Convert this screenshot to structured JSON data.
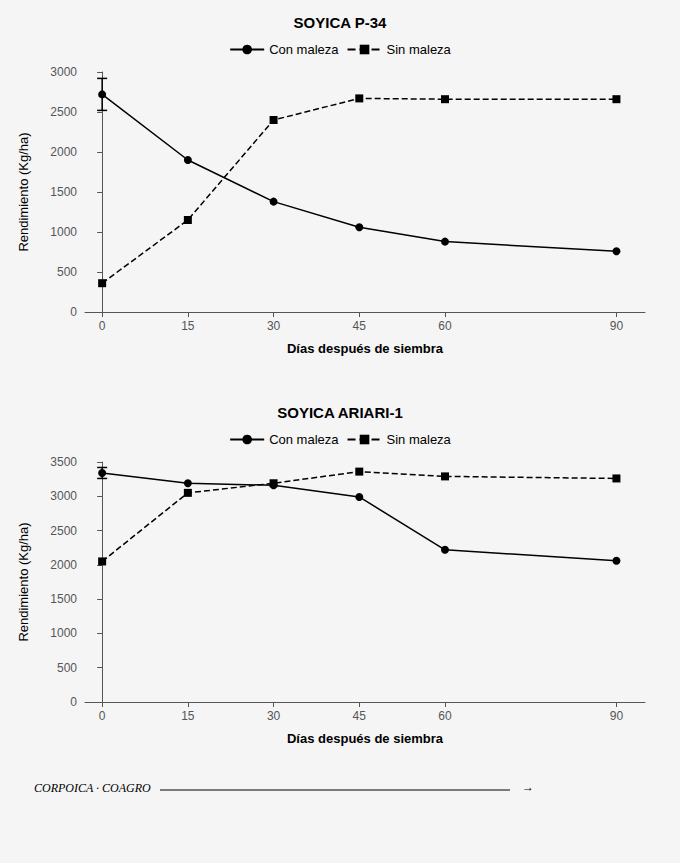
{
  "chart_data": [
    {
      "type": "line",
      "title": "SOYICA P-34",
      "x_label": "Días después de siembra",
      "y_label": "Rendimiento (Kg/ha)",
      "x": [
        0,
        15,
        30,
        45,
        60,
        90
      ],
      "series": [
        {
          "name": "Con maleza",
          "color": "#000000",
          "marker": "circle",
          "line_style": "solid",
          "values": [
            2720,
            1900,
            1380,
            1060,
            880,
            760
          ],
          "error": [
            200,
            null,
            null,
            null,
            null,
            null
          ]
        },
        {
          "name": "Sin maleza",
          "color": "#000000",
          "marker": "square",
          "line_style": "dashed",
          "values": [
            360,
            1150,
            2400,
            2670,
            2660,
            2660
          ]
        }
      ],
      "xlim": [
        -3,
        95
      ],
      "xticks": [
        0,
        15,
        30,
        45,
        60,
        90
      ],
      "ylim": [
        0,
        3000
      ],
      "yticks": [
        0,
        500,
        1000,
        1500,
        2000,
        2500,
        3000
      ],
      "grid": false,
      "legend": "top"
    },
    {
      "type": "line",
      "title": "SOYICA ARIARI-1",
      "x_label": "Días después de siembra",
      "y_label": "Rendimiento (Kg/ha)",
      "x": [
        0,
        15,
        30,
        45,
        60,
        90
      ],
      "series": [
        {
          "name": "Con maleza",
          "color": "#000000",
          "marker": "circle",
          "line_style": "solid",
          "values": [
            3340,
            3190,
            3160,
            2990,
            2220,
            2060
          ],
          "error": [
            80,
            null,
            null,
            null,
            null,
            null
          ]
        },
        {
          "name": "Sin maleza",
          "color": "#000000",
          "marker": "square",
          "line_style": "dashed",
          "values": [
            2050,
            3050,
            3190,
            3360,
            3290,
            3260
          ]
        }
      ],
      "xlim": [
        -3,
        95
      ],
      "xticks": [
        0,
        15,
        30,
        45,
        60,
        90
      ],
      "ylim": [
        0,
        3500
      ],
      "yticks": [
        0,
        500,
        1000,
        1500,
        2000,
        2500,
        3000,
        3500
      ],
      "grid": false,
      "legend": "top",
      "annotations": [
        "CORPOICA · COAGRO",
        "→"
      ]
    }
  ]
}
